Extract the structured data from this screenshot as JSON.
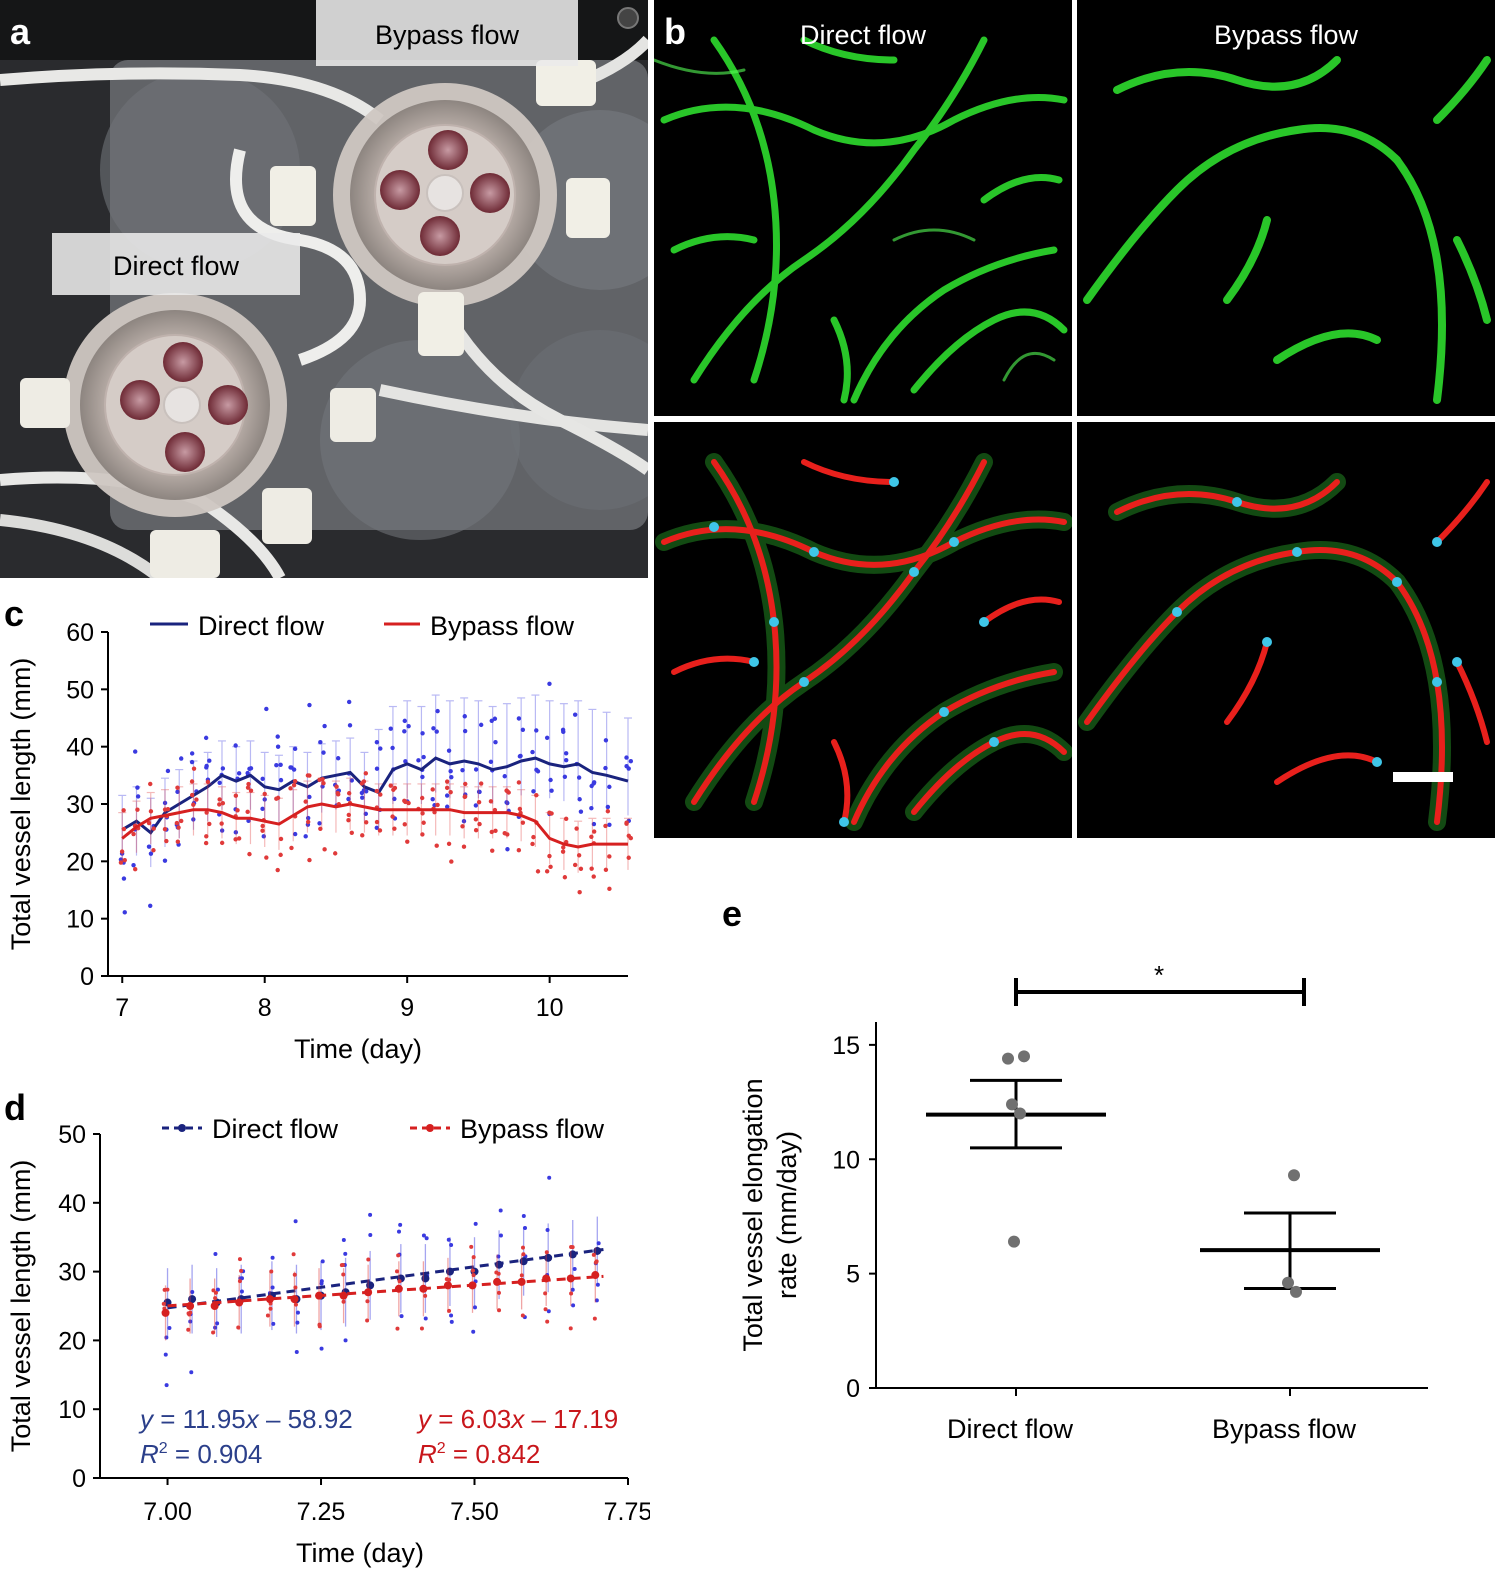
{
  "panel_a": {
    "letter": "a",
    "labels": {
      "bypass": "Bypass flow",
      "direct": "Direct flow"
    }
  },
  "panel_b": {
    "letter": "b",
    "titles": {
      "left": "Direct flow",
      "right": "Bypass flow"
    },
    "colors": {
      "vessel_signal": "#2edc2e",
      "skeleton": "#e8201c",
      "nodes": "#3fc6e8",
      "outline": "#e9f2c4",
      "background": "#000000"
    }
  },
  "panel_c": {
    "letter": "c",
    "legend": {
      "direct": "Direct flow",
      "bypass": "Bypass flow"
    },
    "ylabel": "Total vessel length (mm)",
    "xlabel": "Time (day)",
    "yticks": [
      "0",
      "10",
      "20",
      "30",
      "40",
      "50",
      "60"
    ],
    "xticks": [
      "7",
      "8",
      "9",
      "10"
    ]
  },
  "panel_d": {
    "letter": "d",
    "legend": {
      "direct": "Direct flow",
      "bypass": "Bypass flow"
    },
    "ylabel": "Total vessel length (mm)",
    "xlabel": "Time (day)",
    "yticks": [
      "0",
      "10",
      "20",
      "30",
      "40",
      "50"
    ],
    "xticks": [
      "7.00",
      "7.25",
      "7.50",
      "7.75"
    ],
    "eq_direct": {
      "y": "y",
      "eq": " = 11.95",
      "x": "x",
      "rest": " – 58.92",
      "r": "R",
      "sup": "2",
      "rval": " = 0.904"
    },
    "eq_bypass": {
      "y": "y",
      "eq": " = 6.03",
      "x": "x",
      "rest": " – 17.19",
      "r": "R",
      "sup": "2",
      "rval": " = 0.842"
    }
  },
  "panel_e": {
    "letter": "e",
    "ylabel_line1": "Total vessel elongation",
    "ylabel_line2": "rate (mm/day)",
    "yticks": [
      "0",
      "5",
      "10",
      "15"
    ],
    "categories": [
      "Direct flow",
      "Bypass flow"
    ],
    "significance": "*"
  },
  "colors": {
    "direct": "#1a237e",
    "direct_points": "#3a3ae0",
    "bypass": "#d62020",
    "bypass_points": "#e03a3a",
    "e_points": "#707070"
  },
  "chart_data": [
    {
      "id": "c",
      "type": "line",
      "xlabel": "Time (day)",
      "ylabel": "Total vessel length (mm)",
      "xlim": [
        6.9,
        10.55
      ],
      "ylim": [
        0,
        60
      ],
      "legend": "top",
      "series": [
        {
          "name": "Direct flow",
          "x": [
            7.0,
            7.1,
            7.2,
            7.3,
            7.4,
            7.5,
            7.6,
            7.7,
            7.8,
            7.9,
            8.0,
            8.1,
            8.2,
            8.3,
            8.4,
            8.5,
            8.6,
            8.7,
            8.8,
            8.9,
            9.0,
            9.1,
            9.2,
            9.3,
            9.4,
            9.5,
            9.6,
            9.7,
            9.8,
            9.9,
            10.0,
            10.1,
            10.2,
            10.3,
            10.4,
            10.55
          ],
          "values": [
            25.5,
            27,
            25,
            28.5,
            30,
            31.5,
            33,
            35,
            34,
            35,
            33,
            32.5,
            34,
            33,
            34.5,
            35,
            35.5,
            33,
            32,
            36,
            37,
            36,
            38,
            37,
            37.5,
            37,
            36,
            36.5,
            37.5,
            38,
            37,
            36.5,
            37,
            35.5,
            35,
            34
          ]
        },
        {
          "name": "Bypass flow",
          "x": [
            7.0,
            7.1,
            7.2,
            7.3,
            7.4,
            7.5,
            7.6,
            7.7,
            7.8,
            7.9,
            8.0,
            8.1,
            8.2,
            8.3,
            8.4,
            8.5,
            8.6,
            8.7,
            8.8,
            8.9,
            9.0,
            9.1,
            9.2,
            9.3,
            9.4,
            9.5,
            9.6,
            9.7,
            9.8,
            9.9,
            10.0,
            10.1,
            10.2,
            10.3,
            10.4,
            10.55
          ],
          "values": [
            24,
            26,
            27.5,
            28,
            28.5,
            29,
            29,
            28.5,
            27.5,
            27.5,
            27,
            26.5,
            28,
            29.5,
            30,
            29.5,
            30,
            29.5,
            29,
            29,
            29,
            29,
            29,
            29,
            28.5,
            28.5,
            28.5,
            28.5,
            28,
            27,
            24,
            23,
            22.5,
            23,
            23,
            23
          ]
        }
      ]
    },
    {
      "id": "d",
      "type": "scatter",
      "xlabel": "Time (day)",
      "ylabel": "Total vessel length (mm)",
      "xlim": [
        6.89,
        7.75
      ],
      "ylim": [
        0,
        50
      ],
      "legend": "top",
      "series": [
        {
          "name": "Direct flow",
          "x": [
            7.0,
            7.02,
            7.04,
            7.06,
            7.08,
            7.1,
            7.12,
            7.14,
            7.17,
            7.19,
            7.21,
            7.23,
            7.25,
            7.27,
            7.29,
            7.31,
            7.33,
            7.35,
            7.38,
            7.4,
            7.42,
            7.44,
            7.46,
            7.48,
            7.5,
            7.52,
            7.54,
            7.56,
            7.58,
            7.6,
            7.62,
            7.64,
            7.66,
            7.68,
            7.7,
            7.71
          ],
          "values": [
            25.5,
            25,
            26,
            25.5,
            25.5,
            25.5,
            26,
            26,
            26.5,
            26.5,
            26,
            25,
            26.5,
            27.5,
            27,
            27.5,
            28,
            28,
            29,
            28.5,
            29,
            29.5,
            30,
            30,
            30,
            30.5,
            31,
            31,
            31.5,
            31.5,
            32,
            32,
            32.5,
            33,
            33,
            32.5
          ],
          "fit": {
            "slope": 11.95,
            "intercept": -58.92,
            "r2": 0.904
          }
        },
        {
          "name": "Bypass flow",
          "x": [
            7.0,
            7.02,
            7.04,
            7.06,
            7.08,
            7.1,
            7.12,
            7.14,
            7.17,
            7.19,
            7.21,
            7.23,
            7.25,
            7.27,
            7.29,
            7.31,
            7.33,
            7.35,
            7.38,
            7.4,
            7.42,
            7.44,
            7.46,
            7.48,
            7.5,
            7.52,
            7.54,
            7.56,
            7.58,
            7.6,
            7.62,
            7.64,
            7.66,
            7.68,
            7.7,
            7.71
          ],
          "values": [
            24,
            24.5,
            25,
            25,
            25,
            25,
            25.5,
            25.5,
            26,
            26,
            26,
            26,
            26.5,
            26.5,
            26.5,
            27,
            27,
            27,
            27.5,
            27.5,
            27.5,
            27.5,
            28,
            28,
            28,
            28,
            28.5,
            28.5,
            28.5,
            28.5,
            29,
            29,
            29,
            29.5,
            29.5,
            29
          ],
          "fit": {
            "slope": 6.03,
            "intercept": -17.19,
            "r2": 0.842
          }
        }
      ]
    },
    {
      "id": "e",
      "type": "scatter",
      "ylabel": "Total vessel elongation rate (mm/day)",
      "categories": [
        "Direct flow",
        "Bypass flow"
      ],
      "ylim": [
        0,
        16
      ],
      "series": [
        {
          "name": "Direct flow",
          "points": [
            14.4,
            14.5,
            12.4,
            12.0,
            6.4
          ],
          "mean": 11.95,
          "sem_upper": 13.45,
          "sem_lower": 10.5
        },
        {
          "name": "Bypass flow",
          "points": [
            9.3,
            4.6,
            4.2
          ],
          "mean": 6.03,
          "sem_upper": 7.65,
          "sem_lower": 4.35
        }
      ],
      "significance": "*"
    }
  ]
}
